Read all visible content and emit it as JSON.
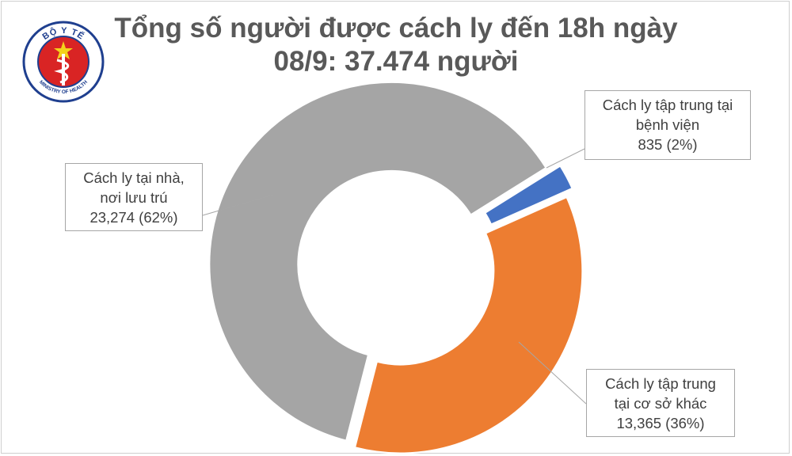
{
  "title": {
    "line1": "Tổng số người được cách ly đến 18h ngày",
    "line2": "08/9: 37.474 người"
  },
  "logo": {
    "top_text": "BỘ Y TẾ",
    "bottom_text": "MINISTRY OF HEALTH",
    "colors": {
      "ring": "#1f3f8f",
      "field": "#d92424",
      "star": "#f3d31a"
    }
  },
  "chart_data": {
    "type": "pie",
    "style": "donut-exploded",
    "title": "Tổng số người được cách ly đến 18h ngày 08/9: 37.474 người",
    "total": 37474,
    "slices": [
      {
        "label_lines": [
          "Cách ly tập trung tại",
          "bệnh viện"
        ],
        "value_text": "835 (2%)",
        "value": 835,
        "percent": 2,
        "color": "#4472c4"
      },
      {
        "label_lines": [
          "Cách ly tập trung",
          "tại cơ sở khác"
        ],
        "value_text": "13,365 (36%)",
        "value": 13365,
        "percent": 36,
        "color": "#ed7d31"
      },
      {
        "label_lines": [
          "Cách ly tại nhà,",
          "nơi lưu trú"
        ],
        "value_text": "23,274 (62%)",
        "value": 23274,
        "percent": 62,
        "color": "#a5a5a5"
      }
    ]
  }
}
